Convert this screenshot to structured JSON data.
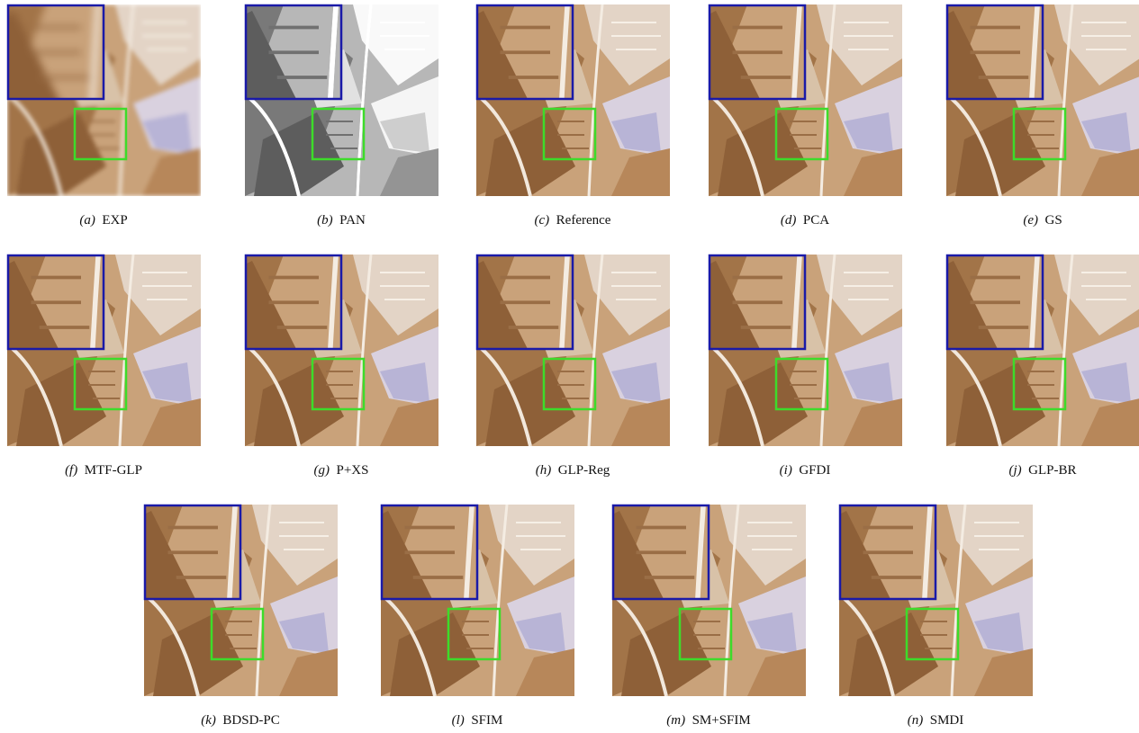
{
  "figure": {
    "panels": [
      {
        "letter": "(a)",
        "label": "EXP"
      },
      {
        "letter": "(b)",
        "label": "PAN"
      },
      {
        "letter": "(c)",
        "label": "Reference"
      },
      {
        "letter": "(d)",
        "label": "PCA"
      },
      {
        "letter": "(e)",
        "label": "GS"
      },
      {
        "letter": "(f)",
        "label": "MTF-GLP"
      },
      {
        "letter": "(g)",
        "label": "P+XS"
      },
      {
        "letter": "(h)",
        "label": "GLP-Reg"
      },
      {
        "letter": "(i)",
        "label": "GFDI"
      },
      {
        "letter": "(j)",
        "label": "GLP-BR"
      },
      {
        "letter": "(k)",
        "label": "BDSD-PC"
      },
      {
        "letter": "(l)",
        "label": "SFIM"
      },
      {
        "letter": "(m)",
        "label": "SM+SFIM"
      },
      {
        "letter": "(n)",
        "label": "SMDI"
      }
    ]
  }
}
